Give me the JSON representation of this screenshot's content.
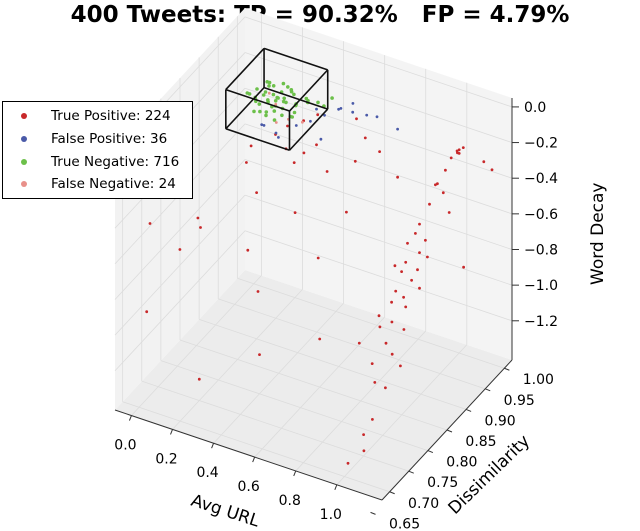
{
  "title": "400 Tweets: TP = 90.32%   FP = 4.79%",
  "legend": [
    {
      "label": "True Positive: 224",
      "color": "#c8282a"
    },
    {
      "label": "False Positive: 36",
      "color": "#4a5aa8"
    },
    {
      "label": "True Negative: 716",
      "color": "#6cc04a"
    },
    {
      "label": "False Negative: 24",
      "color": "#e8908a"
    }
  ],
  "chart_data": {
    "type": "scatter",
    "projection": "3d",
    "title": "400 Tweets: TP = 90.32%   FP = 4.79%",
    "xlabel": "Avg URL",
    "ylabel": "Dissimilarity",
    "zlabel": "Word Decay",
    "xlim": [
      -0.08,
      1.22
    ],
    "ylim": [
      0.68,
      1.02
    ],
    "zlim": [
      -1.42,
      0.05
    ],
    "xticks": [
      "0.0",
      "0.2",
      "0.4",
      "0.6",
      "0.8",
      "1.0"
    ],
    "yticks": [
      "0.65",
      "0.70",
      "0.75",
      "0.80",
      "0.85",
      "0.90",
      "0.95",
      "1.00"
    ],
    "zticks": [
      "0.0",
      "−0.2",
      "−0.4",
      "−0.6",
      "−0.8",
      "−1.0",
      "−1.2"
    ],
    "grid": true,
    "legend_position": "left",
    "highlight_box": {
      "x": [
        0.05,
        0.36
      ],
      "y": [
        0.9,
        1.0
      ],
      "z": [
        -0.3,
        -0.08
      ]
    },
    "series": [
      {
        "name": "True Positive: 224",
        "color": "#c8282a",
        "points": [
          [
            1.0,
            1.0,
            -0.28
          ],
          [
            1.01,
            0.99,
            -0.27
          ],
          [
            1.0,
            1.0,
            -0.3
          ],
          [
            0.99,
            1.0,
            -0.29
          ],
          [
            1.02,
            1.0,
            -0.26
          ],
          [
            0.98,
            0.99,
            -0.31
          ],
          [
            1.12,
            1.0,
            -0.3
          ],
          [
            1.16,
            1.0,
            -0.33
          ],
          [
            0.97,
            0.98,
            -0.36
          ],
          [
            0.95,
            0.97,
            -0.42
          ],
          [
            0.94,
            0.97,
            -0.43
          ],
          [
            0.96,
            0.98,
            -0.49
          ],
          [
            0.93,
            0.96,
            -0.52
          ],
          [
            0.97,
            0.99,
            -0.62
          ],
          [
            0.9,
            0.95,
            -0.62
          ],
          [
            0.88,
            0.95,
            -0.68
          ],
          [
            0.86,
            0.94,
            -0.72
          ],
          [
            0.91,
            0.96,
            -0.73
          ],
          [
            0.9,
            0.95,
            -0.78
          ],
          [
            0.87,
            0.93,
            -0.8
          ],
          [
            0.92,
            0.96,
            -0.82
          ],
          [
            0.85,
            0.93,
            -0.86
          ],
          [
            0.89,
            0.95,
            -0.88
          ],
          [
            0.88,
            0.94,
            -0.92
          ],
          [
            0.84,
            0.92,
            -0.95
          ],
          [
            0.9,
            0.95,
            -0.98
          ],
          [
            0.86,
            0.93,
            -1.0
          ],
          [
            0.82,
            0.92,
            -1.02
          ],
          [
            0.87,
            0.93,
            -1.05
          ],
          [
            0.84,
            0.91,
            -1.1
          ],
          [
            0.8,
            0.9,
            -1.12
          ],
          [
            0.88,
            0.92,
            -1.15
          ],
          [
            0.83,
            0.9,
            -1.2
          ],
          [
            0.86,
            0.9,
            -1.25
          ],
          [
            0.8,
            0.88,
            -1.28
          ],
          [
            0.9,
            0.9,
            -1.3
          ],
          [
            0.85,
            0.86,
            -1.32
          ],
          [
            0.92,
            0.85,
            -1.3
          ],
          [
            0.95,
            0.8,
            -1.35
          ],
          [
            1.0,
            0.75,
            -1.3
          ],
          [
            1.02,
            0.74,
            -1.36
          ],
          [
            0.98,
            0.72,
            -1.4
          ],
          [
            0.78,
            0.95,
            -0.9
          ],
          [
            0.74,
            0.93,
            -1.15
          ],
          [
            1.04,
            0.99,
            -0.9
          ],
          [
            -0.04,
            0.75,
            -0.52
          ],
          [
            0.0,
            0.72,
            -0.93
          ],
          [
            0.05,
            0.78,
            -0.7
          ],
          [
            0.1,
            0.8,
            -0.55
          ],
          [
            0.02,
            0.85,
            -0.75
          ],
          [
            0.15,
            0.9,
            -0.45
          ],
          [
            0.2,
            0.9,
            -0.6
          ],
          [
            0.08,
            0.95,
            -0.5
          ],
          [
            0.18,
            0.96,
            -0.42
          ],
          [
            0.25,
            0.95,
            -0.45
          ],
          [
            0.3,
            0.97,
            -0.5
          ],
          [
            0.38,
            0.96,
            -0.4
          ],
          [
            0.45,
            0.95,
            -0.5
          ],
          [
            0.35,
            0.92,
            -0.7
          ],
          [
            0.12,
            0.92,
            -1.0
          ],
          [
            0.3,
            0.85,
            -1.0
          ],
          [
            0.5,
            0.9,
            -0.85
          ],
          [
            0.6,
            0.92,
            -0.6
          ],
          [
            0.55,
            0.97,
            -0.45
          ],
          [
            0.65,
            0.98,
            -0.38
          ],
          [
            0.7,
            1.0,
            -0.55
          ],
          [
            0.4,
            0.8,
            -1.2
          ],
          [
            0.6,
            0.85,
            -1.15
          ],
          [
            0.7,
            0.9,
            -1.25
          ],
          [
            0.2,
            0.75,
            -1.3
          ],
          [
            0.28,
            0.98,
            -0.35
          ],
          [
            0.33,
            0.99,
            -0.32
          ],
          [
            0.5,
            1.0,
            -0.3
          ],
          [
            0.58,
            0.98,
            -0.33
          ],
          [
            0.22,
            0.97,
            -0.38
          ],
          [
            0.42,
            0.88,
            -0.3
          ]
        ]
      },
      {
        "name": "False Positive: 36",
        "color": "#4a5aa8",
        "points": [
          [
            0.3,
            0.95,
            -0.3
          ],
          [
            0.35,
            0.96,
            -0.28
          ],
          [
            0.4,
            0.97,
            -0.25
          ],
          [
            0.45,
            0.98,
            -0.22
          ],
          [
            0.5,
            0.99,
            -0.24
          ],
          [
            0.55,
            1.0,
            -0.26
          ],
          [
            0.6,
            1.0,
            -0.25
          ],
          [
            0.42,
            0.95,
            -0.33
          ],
          [
            0.15,
            0.94,
            -0.33
          ],
          [
            0.18,
            0.93,
            -0.3
          ],
          [
            0.22,
            0.94,
            -0.35
          ],
          [
            0.25,
            0.93,
            -0.34
          ],
          [
            0.48,
            0.97,
            -0.18
          ],
          [
            0.52,
            0.98,
            -0.16
          ],
          [
            0.7,
            1.0,
            -0.28
          ],
          [
            0.38,
            0.96,
            -0.2
          ]
        ]
      },
      {
        "name": "True Negative: 716",
        "color": "#6cc04a",
        "points": [
          [
            0.2,
            0.95,
            -0.2
          ],
          [
            0.18,
            0.94,
            -0.18
          ],
          [
            0.22,
            0.96,
            -0.22
          ],
          [
            0.15,
            0.95,
            -0.17
          ],
          [
            0.25,
            0.95,
            -0.19
          ],
          [
            0.12,
            0.94,
            -0.2
          ],
          [
            0.28,
            0.96,
            -0.21
          ],
          [
            0.2,
            0.93,
            -0.16
          ],
          [
            0.17,
            0.97,
            -0.24
          ],
          [
            0.23,
            0.94,
            -0.15
          ],
          [
            0.1,
            0.95,
            -0.22
          ],
          [
            0.3,
            0.95,
            -0.18
          ],
          [
            0.14,
            0.96,
            -0.14
          ],
          [
            0.26,
            0.97,
            -0.25
          ],
          [
            0.19,
            0.95,
            -0.12
          ],
          [
            0.21,
            0.92,
            -0.19
          ],
          [
            0.16,
            0.93,
            -0.23
          ],
          [
            0.24,
            0.96,
            -0.13
          ],
          [
            0.32,
            0.97,
            -0.2
          ],
          [
            0.08,
            0.94,
            -0.18
          ],
          [
            0.13,
            0.97,
            -0.19
          ],
          [
            0.27,
            0.93,
            -0.17
          ],
          [
            0.22,
            0.98,
            -0.2
          ],
          [
            0.18,
            0.96,
            -0.26
          ],
          [
            0.35,
            0.98,
            -0.22
          ],
          [
            0.11,
            0.93,
            -0.15
          ],
          [
            0.29,
            0.94,
            -0.23
          ],
          [
            0.2,
            0.97,
            -0.15
          ],
          [
            0.15,
            0.92,
            -0.21
          ],
          [
            0.25,
            0.92,
            -0.22
          ],
          [
            0.33,
            0.96,
            -0.16
          ],
          [
            0.09,
            0.96,
            -0.2
          ],
          [
            0.17,
            0.95,
            -0.11
          ],
          [
            0.23,
            0.95,
            -0.27
          ],
          [
            0.3,
            0.98,
            -0.24
          ],
          [
            0.36,
            0.99,
            -0.26
          ],
          [
            0.4,
            0.99,
            -0.2
          ],
          [
            0.12,
            0.95,
            -0.25
          ],
          [
            0.26,
            0.94,
            -0.14
          ],
          [
            0.19,
            0.93,
            -0.24
          ],
          [
            0.21,
            0.96,
            -0.17
          ],
          [
            0.16,
            0.94,
            -0.16
          ],
          [
            0.24,
            0.97,
            -0.18
          ],
          [
            0.28,
            0.95,
            -0.26
          ],
          [
            0.14,
            0.93,
            -0.18
          ],
          [
            0.31,
            0.94,
            -0.2
          ],
          [
            0.2,
            0.94,
            -0.21
          ],
          [
            0.17,
            0.96,
            -0.2
          ],
          [
            0.23,
            0.93,
            -0.2
          ],
          [
            0.27,
            0.96,
            -0.16
          ]
        ]
      },
      {
        "name": "False Negative: 24",
        "color": "#e8908a",
        "points": [
          [
            0.2,
            0.95,
            -0.22
          ],
          [
            0.28,
            0.94,
            -0.25
          ],
          [
            0.15,
            0.96,
            -0.2
          ],
          [
            0.33,
            0.95,
            -0.27
          ],
          [
            0.24,
            0.93,
            -0.26
          ]
        ]
      }
    ]
  }
}
